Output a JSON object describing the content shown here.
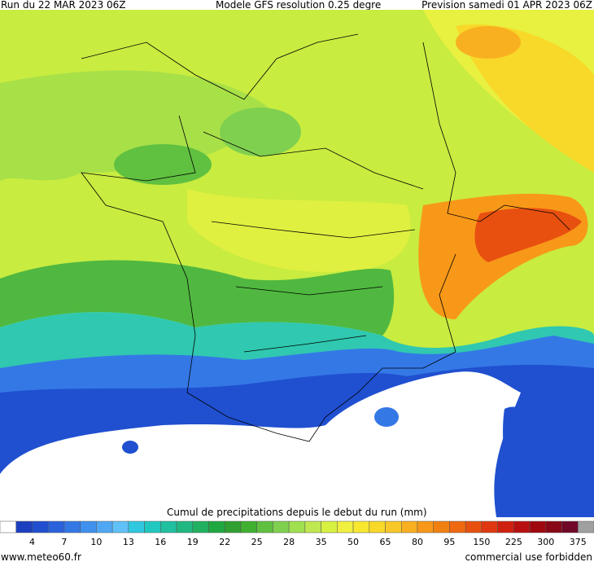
{
  "header": {
    "left": "Run du 22 MAR 2023 06Z",
    "center": "Modele GFS resolution 0.25 degre",
    "right": "Prevision samedi 01 APR 2023 06Z"
  },
  "legend": {
    "title": "Cumul de precipitations depuis le debut du run (mm)",
    "colors": [
      "#ffffff",
      "#1c3fbf",
      "#2050d0",
      "#2a62dc",
      "#3478e6",
      "#4090ee",
      "#50a8f4",
      "#60c0f8",
      "#30c8e0",
      "#20c8c0",
      "#20c0a0",
      "#20b880",
      "#20b060",
      "#20a840",
      "#30a030",
      "#40b030",
      "#60c040",
      "#80d050",
      "#a0e050",
      "#c0e850",
      "#d8f040",
      "#f0f040",
      "#f8e830",
      "#f8d828",
      "#f8c828",
      "#f8b020",
      "#f89818",
      "#f08010",
      "#f06810",
      "#e85010",
      "#e03810",
      "#d02010",
      "#b81010",
      "#a00810",
      "#880818",
      "#700828",
      "#a0a0a0"
    ],
    "labels": [
      4,
      7,
      10,
      13,
      16,
      19,
      22,
      25,
      28,
      35,
      50,
      65,
      80,
      95,
      150,
      225,
      300,
      375
    ]
  },
  "footer": {
    "left": "www.meteo60.fr",
    "right": "commercial use forbidden"
  }
}
